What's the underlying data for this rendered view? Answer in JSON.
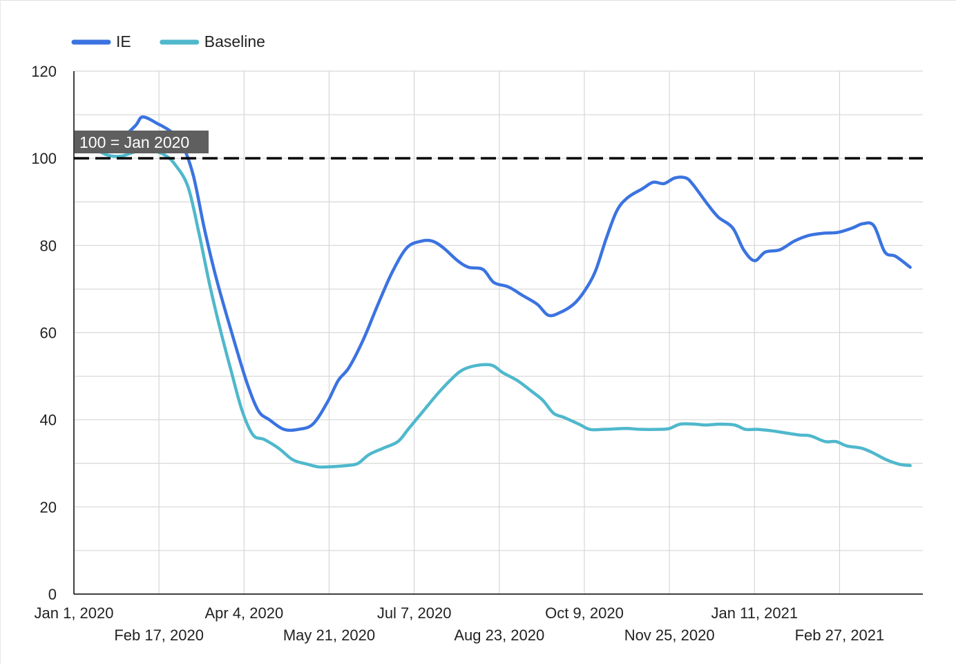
{
  "chart_data": {
    "type": "line",
    "title": "",
    "xlabel": "",
    "ylabel": "",
    "ylim": [
      0,
      120
    ],
    "yticks": [
      0,
      20,
      40,
      60,
      80,
      100,
      120
    ],
    "xlim": [
      "2020-01-01",
      "2021-04-14"
    ],
    "xticks": [
      {
        "date": "2020-01-01",
        "label": "Jan 1, 2020"
      },
      {
        "date": "2020-02-17",
        "label": "Feb 17, 2020"
      },
      {
        "date": "2020-04-04",
        "label": "Apr 4, 2020"
      },
      {
        "date": "2020-05-21",
        "label": "May 21, 2020"
      },
      {
        "date": "2020-07-07",
        "label": "Jul 7, 2020"
      },
      {
        "date": "2020-08-23",
        "label": "Aug 23, 2020"
      },
      {
        "date": "2020-10-09",
        "label": "Oct 9, 2020"
      },
      {
        "date": "2020-11-25",
        "label": "Nov 25, 2020"
      },
      {
        "date": "2021-01-11",
        "label": "Jan 11, 2021"
      },
      {
        "date": "2021-02-27",
        "label": "Feb 27, 2021"
      }
    ],
    "grid": true,
    "legend": "top-left",
    "reference_line": {
      "value": 100,
      "label": "100 = Jan 2020",
      "style": "dashed",
      "color": "#000000"
    },
    "series": [
      {
        "name": "IE",
        "color": "#3b73e0",
        "points": [
          [
            "2020-01-05",
            101.5
          ],
          [
            "2020-01-11",
            102.5
          ],
          [
            "2020-01-19",
            102.5
          ],
          [
            "2020-01-27",
            104.5
          ],
          [
            "2020-02-04",
            107.5
          ],
          [
            "2020-02-08",
            109.5
          ],
          [
            "2020-02-16",
            108.0
          ],
          [
            "2020-02-24",
            106.0
          ],
          [
            "2020-03-01",
            103.0
          ],
          [
            "2020-03-07",
            96.0
          ],
          [
            "2020-03-13",
            84.0
          ],
          [
            "2020-03-19",
            73.5
          ],
          [
            "2020-03-25",
            64.5
          ],
          [
            "2020-03-31",
            56.0
          ],
          [
            "2020-04-06",
            48.0
          ],
          [
            "2020-04-12",
            42.0
          ],
          [
            "2020-04-18",
            40.0
          ],
          [
            "2020-04-26",
            37.8
          ],
          [
            "2020-05-04",
            37.8
          ],
          [
            "2020-05-12",
            39.0
          ],
          [
            "2020-05-20",
            44.0
          ],
          [
            "2020-05-26",
            49.0
          ],
          [
            "2020-06-01",
            52.0
          ],
          [
            "2020-06-09",
            58.5
          ],
          [
            "2020-06-17",
            66.5
          ],
          [
            "2020-06-25",
            74.0
          ],
          [
            "2020-07-03",
            79.5
          ],
          [
            "2020-07-11",
            81.0
          ],
          [
            "2020-07-17",
            81.0
          ],
          [
            "2020-07-23",
            79.5
          ],
          [
            "2020-07-31",
            76.5
          ],
          [
            "2020-08-06",
            75.0
          ],
          [
            "2020-08-14",
            74.5
          ],
          [
            "2020-08-20",
            71.5
          ],
          [
            "2020-08-28",
            70.5
          ],
          [
            "2020-09-05",
            68.5
          ],
          [
            "2020-09-13",
            66.5
          ],
          [
            "2020-09-19",
            64.0
          ],
          [
            "2020-09-25",
            64.5
          ],
          [
            "2020-10-03",
            66.5
          ],
          [
            "2020-10-09",
            69.5
          ],
          [
            "2020-10-15",
            74.0
          ],
          [
            "2020-10-21",
            81.5
          ],
          [
            "2020-10-27",
            88.0
          ],
          [
            "2020-11-02",
            91.0
          ],
          [
            "2020-11-10",
            93.0
          ],
          [
            "2020-11-16",
            94.5
          ],
          [
            "2020-11-22",
            94.2
          ],
          [
            "2020-11-28",
            95.5
          ],
          [
            "2020-12-04",
            95.5
          ],
          [
            "2020-12-08",
            94.0
          ],
          [
            "2020-12-16",
            89.5
          ],
          [
            "2020-12-22",
            86.5
          ],
          [
            "2020-12-30",
            84.0
          ],
          [
            "2021-01-05",
            79.0
          ],
          [
            "2021-01-11",
            76.5
          ],
          [
            "2021-01-17",
            78.5
          ],
          [
            "2021-01-25",
            79.0
          ],
          [
            "2021-02-02",
            81.0
          ],
          [
            "2021-02-10",
            82.3
          ],
          [
            "2021-02-18",
            82.8
          ],
          [
            "2021-02-26",
            83.0
          ],
          [
            "2021-03-06",
            84.0
          ],
          [
            "2021-03-12",
            85.0
          ],
          [
            "2021-03-18",
            84.5
          ],
          [
            "2021-03-24",
            78.5
          ],
          [
            "2021-03-30",
            77.5
          ],
          [
            "2021-04-07",
            75.0
          ]
        ]
      },
      {
        "name": "Baseline",
        "color": "#4fb8cc",
        "points": [
          [
            "2020-01-05",
            102.5
          ],
          [
            "2020-01-11",
            102.5
          ],
          [
            "2020-01-19",
            100.8
          ],
          [
            "2020-01-27",
            100.5
          ],
          [
            "2020-02-04",
            101.5
          ],
          [
            "2020-02-12",
            101.8
          ],
          [
            "2020-02-20",
            100.8
          ],
          [
            "2020-02-26",
            98.5
          ],
          [
            "2020-03-04",
            93.5
          ],
          [
            "2020-03-10",
            83.0
          ],
          [
            "2020-03-16",
            71.0
          ],
          [
            "2020-03-22",
            60.5
          ],
          [
            "2020-03-28",
            51.0
          ],
          [
            "2020-04-03",
            42.0
          ],
          [
            "2020-04-09",
            36.5
          ],
          [
            "2020-04-15",
            35.5
          ],
          [
            "2020-04-23",
            33.5
          ],
          [
            "2020-05-01",
            30.8
          ],
          [
            "2020-05-09",
            29.8
          ],
          [
            "2020-05-15",
            29.2
          ],
          [
            "2020-05-21",
            29.2
          ],
          [
            "2020-05-31",
            29.5
          ],
          [
            "2020-06-06",
            30.0
          ],
          [
            "2020-06-12",
            32.0
          ],
          [
            "2020-06-20",
            33.5
          ],
          [
            "2020-06-28",
            35.0
          ],
          [
            "2020-07-04",
            38.0
          ],
          [
            "2020-07-12",
            42.0
          ],
          [
            "2020-07-20",
            46.0
          ],
          [
            "2020-07-28",
            49.5
          ],
          [
            "2020-08-03",
            51.5
          ],
          [
            "2020-08-11",
            52.5
          ],
          [
            "2020-08-19",
            52.5
          ],
          [
            "2020-08-25",
            50.8
          ],
          [
            "2020-09-02",
            49.0
          ],
          [
            "2020-09-10",
            46.5
          ],
          [
            "2020-09-16",
            44.5
          ],
          [
            "2020-09-22",
            41.5
          ],
          [
            "2020-09-28",
            40.5
          ],
          [
            "2020-10-06",
            39.0
          ],
          [
            "2020-10-12",
            37.8
          ],
          [
            "2020-10-20",
            37.8
          ],
          [
            "2020-11-01",
            38.0
          ],
          [
            "2020-11-09",
            37.8
          ],
          [
            "2020-11-19",
            37.8
          ],
          [
            "2020-11-25",
            38.0
          ],
          [
            "2020-12-01",
            39.0
          ],
          [
            "2020-12-09",
            39.0
          ],
          [
            "2020-12-15",
            38.8
          ],
          [
            "2020-12-23",
            39.0
          ],
          [
            "2020-12-31",
            38.8
          ],
          [
            "2021-01-06",
            37.8
          ],
          [
            "2021-01-12",
            37.8
          ],
          [
            "2021-01-20",
            37.5
          ],
          [
            "2021-01-28",
            37.0
          ],
          [
            "2021-02-05",
            36.5
          ],
          [
            "2021-02-11",
            36.3
          ],
          [
            "2021-02-19",
            35.0
          ],
          [
            "2021-02-25",
            35.0
          ],
          [
            "2021-03-03",
            34.0
          ],
          [
            "2021-03-11",
            33.5
          ],
          [
            "2021-03-17",
            32.5
          ],
          [
            "2021-03-25",
            30.8
          ],
          [
            "2021-04-01",
            29.8
          ],
          [
            "2021-04-07",
            29.5
          ]
        ]
      }
    ]
  }
}
